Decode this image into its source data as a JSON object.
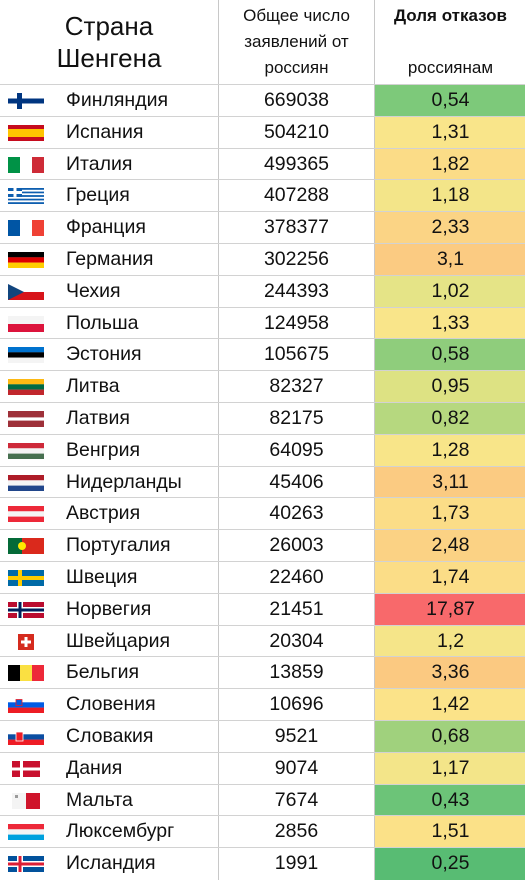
{
  "headers": {
    "country": "Страна\nШенгена",
    "applications": "Общее число\nзаявлений от\nроссиян",
    "refusal_bold": "Доля отказов",
    "refusal_rest": "россиянам\nв визах (%)"
  },
  "rows": [
    {
      "flag": "finland-flag-icon",
      "country": "Финляндия",
      "applications": "669038",
      "refusal": "0,54",
      "color": "#7dc97a"
    },
    {
      "flag": "spain-flag-icon",
      "country": "Испания",
      "applications": "504210",
      "refusal": "1,31",
      "color": "#f9e58a"
    },
    {
      "flag": "italy-flag-icon",
      "country": "Италия",
      "applications": "499365",
      "refusal": "1,82",
      "color": "#fbdc87"
    },
    {
      "flag": "greece-flag-icon",
      "country": "Греция",
      "applications": "407288",
      "refusal": "1,18",
      "color": "#f3e589"
    },
    {
      "flag": "france-flag-icon",
      "country": "Франция",
      "applications": "378377",
      "refusal": "2,33",
      "color": "#fbd485"
    },
    {
      "flag": "germany-flag-icon",
      "country": "Германия",
      "applications": "302256",
      "refusal": "3,1",
      "color": "#fbcb82"
    },
    {
      "flag": "czechia-flag-icon",
      "country": "Чехия",
      "applications": "244393",
      "refusal": "1,02",
      "color": "#e5e487"
    },
    {
      "flag": "poland-flag-icon",
      "country": "Польша",
      "applications": "124958",
      "refusal": "1,33",
      "color": "#f9e58a"
    },
    {
      "flag": "estonia-flag-icon",
      "country": "Эстония",
      "applications": "105675",
      "refusal": "0,58",
      "color": "#8fcd7c"
    },
    {
      "flag": "lithuania-flag-icon",
      "country": "Литва",
      "applications": "82327",
      "refusal": "0,95",
      "color": "#dde283"
    },
    {
      "flag": "latvia-flag-icon",
      "country": "Латвия",
      "applications": "82175",
      "refusal": "0,82",
      "color": "#b6d87f"
    },
    {
      "flag": "hungary-flag-icon",
      "country": "Венгрия",
      "applications": "64095",
      "refusal": "1,28",
      "color": "#f8e589"
    },
    {
      "flag": "netherlands-flag-icon",
      "country": "Нидерланды",
      "applications": "45406",
      "refusal": "3,11",
      "color": "#fbcb82"
    },
    {
      "flag": "austria-flag-icon",
      "country": "Австрия",
      "applications": "40263",
      "refusal": "1,73",
      "color": "#fbdd87"
    },
    {
      "flag": "portugal-flag-icon",
      "country": "Португалия",
      "applications": "26003",
      "refusal": "2,48",
      "color": "#fbd284"
    },
    {
      "flag": "sweden-flag-icon",
      "country": "Швеция",
      "applications": "22460",
      "refusal": "1,74",
      "color": "#fbdd87"
    },
    {
      "flag": "norway-flag-icon",
      "country": "Норвегия",
      "applications": "21451",
      "refusal": "17,87",
      "color": "#f8696b"
    },
    {
      "flag": "switzerland-flag-icon",
      "country": "Швейцария",
      "applications": "20304",
      "refusal": "1,2",
      "color": "#f5e589"
    },
    {
      "flag": "belgium-flag-icon",
      "country": "Бельгия",
      "applications": "13859",
      "refusal": "3,36",
      "color": "#fbc981"
    },
    {
      "flag": "slovenia-flag-icon",
      "country": "Словения",
      "applications": "10696",
      "refusal": "1,42",
      "color": "#fbe389"
    },
    {
      "flag": "slovakia-flag-icon",
      "country": "Словакия",
      "applications": "9521",
      "refusal": "0,68",
      "color": "#a0d17d"
    },
    {
      "flag": "denmark-flag-icon",
      "country": "Дания",
      "applications": "9074",
      "refusal": "1,17",
      "color": "#f3e589"
    },
    {
      "flag": "malta-flag-icon",
      "country": "Мальта",
      "applications": "7674",
      "refusal": "0,43",
      "color": "#6cc478"
    },
    {
      "flag": "luxembourg-flag-icon",
      "country": "Люксембург",
      "applications": "2856",
      "refusal": "1,51",
      "color": "#fbe188"
    },
    {
      "flag": "iceland-flag-icon",
      "country": "Исландия",
      "applications": "1991",
      "refusal": "0,25",
      "color": "#58bc73"
    }
  ]
}
